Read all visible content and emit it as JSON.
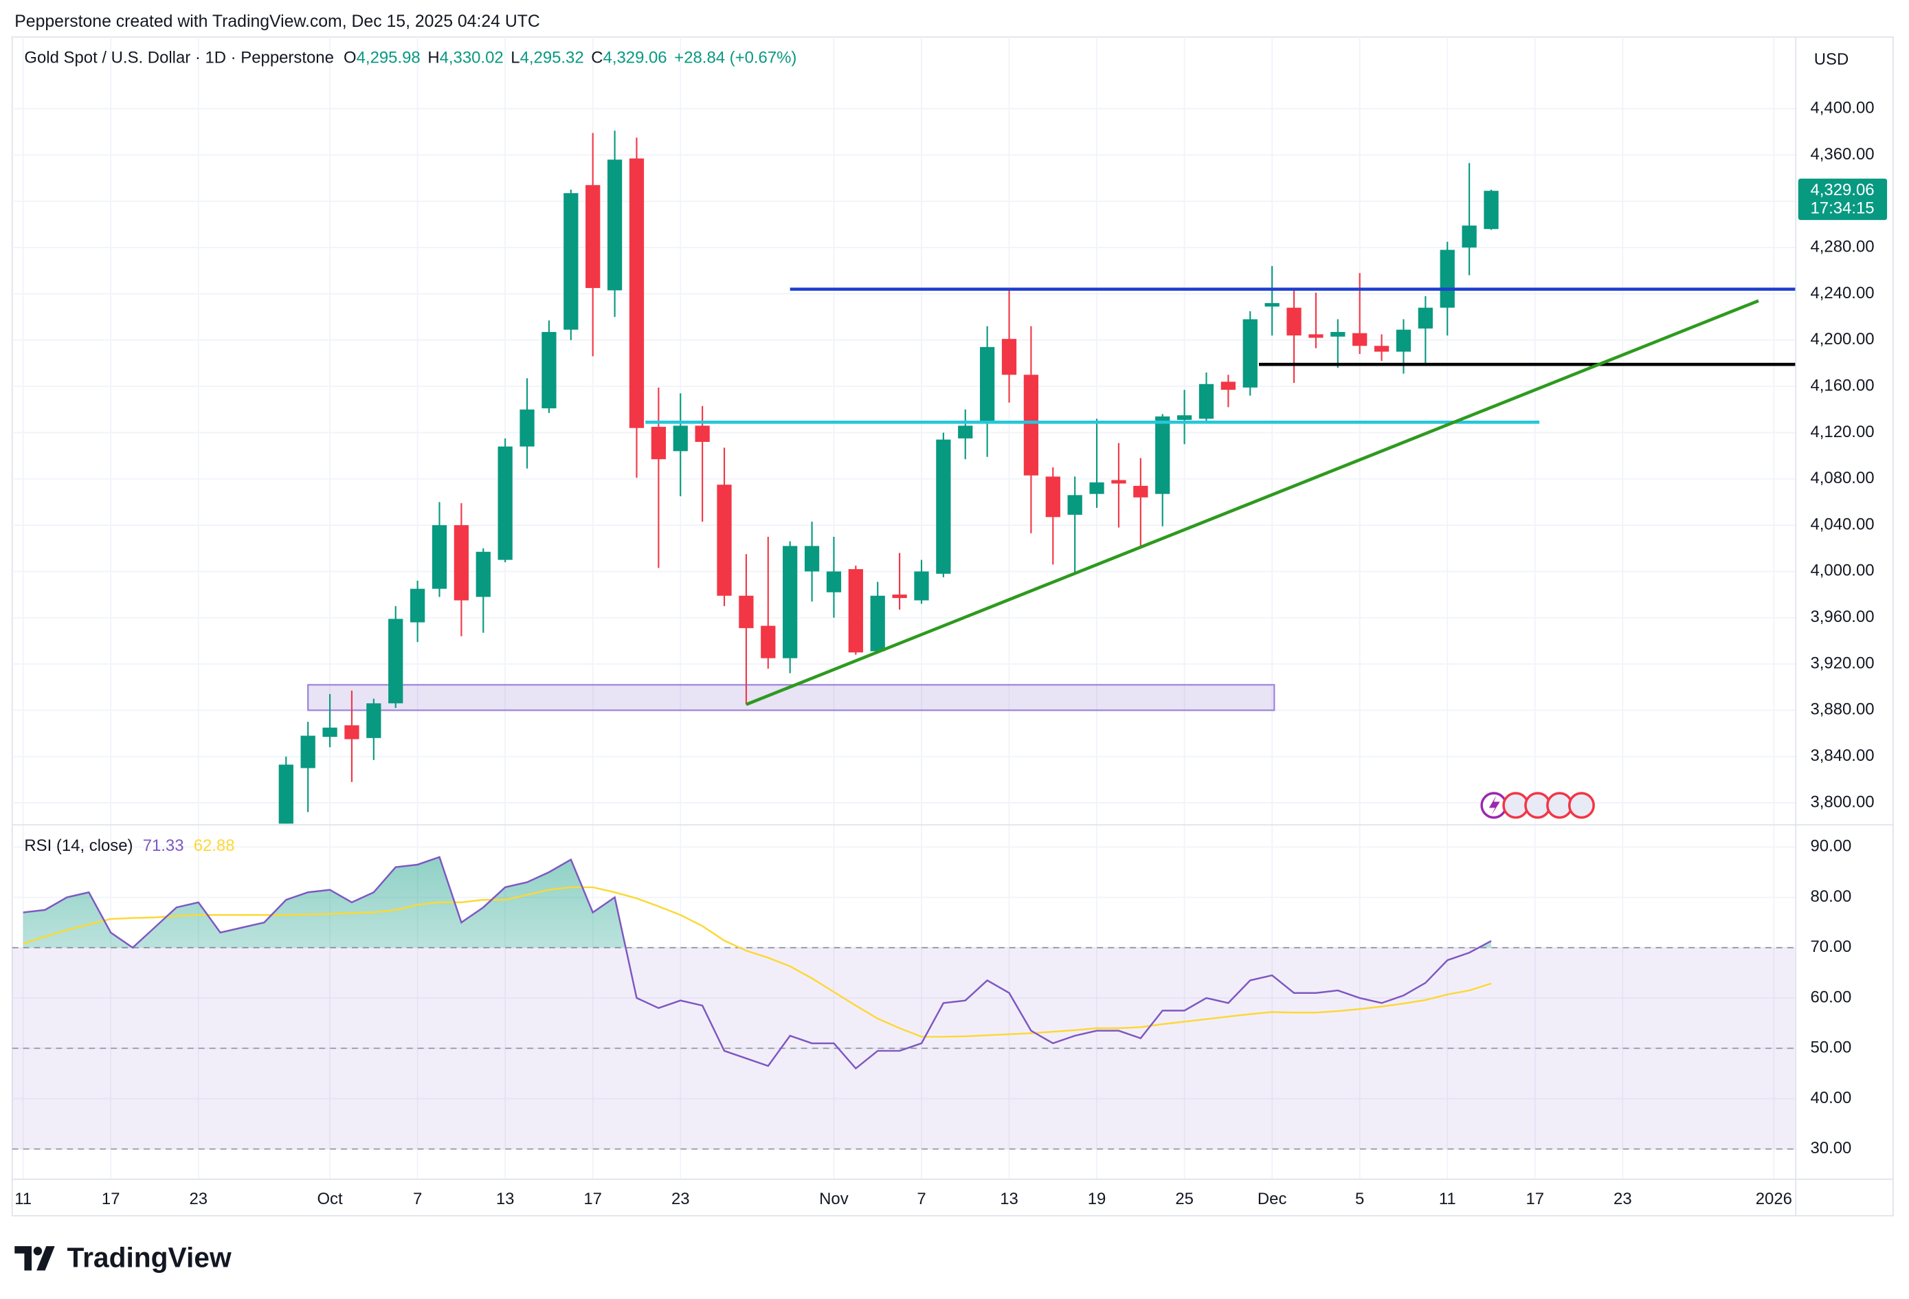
{
  "credit": "Pepperstone created with TradingView.com, Dec 15, 2025 04:24 UTC",
  "brand": "TradingView",
  "currency": "USD",
  "chart_data": [
    {
      "type": "candlestick",
      "title": "Gold Spot / U.S. Dollar · 1D · Pepperstone",
      "header_values": [
        {
          "key": "O",
          "value": 4295.98,
          "label": "4,295.98"
        },
        {
          "key": "H",
          "value": 4330.02,
          "label": "4,330.02"
        },
        {
          "key": "L",
          "value": 4295.32,
          "label": "4,295.32"
        },
        {
          "key": "C",
          "value": 4329.06,
          "label": "4,329.06"
        }
      ],
      "change": "+28.84 (+0.67%)",
      "up_color": "#089981",
      "down_color": "#f23645",
      "x": [
        0,
        1,
        2,
        3,
        4,
        5,
        6,
        7,
        8,
        9,
        10,
        11,
        12,
        13,
        14,
        15,
        16,
        17,
        18,
        19,
        20,
        21,
        22,
        23,
        24,
        25,
        26,
        27,
        28,
        29,
        30,
        31,
        32,
        33,
        34,
        35,
        36,
        37,
        38,
        39,
        40,
        41,
        42,
        43,
        44,
        45,
        46,
        47,
        48,
        49,
        50,
        51,
        52,
        53,
        54,
        55
      ],
      "open": [
        3760,
        3830,
        3857,
        3867,
        3856,
        3886,
        3956,
        3985,
        4040,
        3978,
        4010,
        4108,
        4141,
        4209,
        4334,
        4243,
        4357,
        4125,
        4104,
        4126,
        4075,
        3979,
        3953,
        3925,
        4000,
        3982,
        4002,
        3931,
        3980,
        3975,
        3998,
        4115,
        4128,
        4201,
        4170,
        4082,
        4049,
        4067,
        4079,
        4074,
        4067,
        4131,
        4132,
        4164,
        4159,
        4229,
        4228,
        4205,
        4203,
        4206,
        4195,
        4190,
        4210,
        4228,
        4280,
        4295.98
      ],
      "high": [
        3840,
        3870,
        3894,
        3897,
        3890,
        3970,
        3992,
        4060,
        4059,
        4020,
        4115,
        4167,
        4217,
        4330,
        4379,
        4381,
        4375,
        4159,
        4154,
        4143,
        4107,
        4015,
        4030,
        4026,
        4043,
        4030,
        4005,
        3991,
        4016,
        4010,
        4120,
        4140,
        4212,
        4245,
        4212,
        4090,
        4082,
        4132,
        4111,
        4098,
        4136,
        4157,
        4172,
        4170,
        4225,
        4264,
        4245,
        4241,
        4218,
        4258,
        4205,
        4218,
        4238,
        4285,
        4353,
        4330.02
      ],
      "low": [
        3745,
        3792,
        3848,
        3818,
        3837,
        3882,
        3939,
        3978,
        3944,
        3947,
        4008,
        4089,
        4137,
        4200,
        4186,
        4220,
        4081,
        4003,
        4065,
        4043,
        3970,
        3885,
        3916,
        3912,
        3974,
        3960,
        3928,
        3930,
        3967,
        3972,
        3995,
        4097,
        4099,
        4146,
        4033,
        4006,
        3999,
        4055,
        4038,
        4020,
        4039,
        4110,
        4128,
        4142,
        4152,
        4204,
        4163,
        4193,
        4176,
        4188,
        4182,
        4171,
        4180,
        4204,
        4256,
        4295.32
      ],
      "close": [
        3833,
        3858,
        3865,
        3855,
        3886,
        3959,
        3985,
        4040,
        3975,
        4017,
        4108,
        4140,
        4207,
        4327,
        4245,
        4356,
        4124,
        4097,
        4126,
        4112,
        3979,
        3951,
        3925,
        4022,
        4022,
        4000,
        3930,
        3979,
        3977,
        4000,
        4114,
        4126,
        4194,
        4170,
        4083,
        4047,
        4066,
        4077,
        4076,
        4064,
        4134,
        4135,
        4162,
        4157,
        4218,
        4232,
        4204,
        4202,
        4207,
        4195,
        4190,
        4209,
        4228,
        4278,
        4299,
        4329.06
      ],
      "last_price": {
        "value": 4329.06,
        "label": "4,329.06",
        "countdown": "17:34:15"
      },
      "xlim": [
        -12.5,
        68.9
      ],
      "ylim": [
        3782,
        4462
      ],
      "yticks": [
        {
          "value": 3800,
          "label": "3,800.00"
        },
        {
          "value": 3840,
          "label": "3,840.00"
        },
        {
          "value": 3880,
          "label": "3,880.00"
        },
        {
          "value": 3920,
          "label": "3,920.00"
        },
        {
          "value": 3960,
          "label": "3,960.00"
        },
        {
          "value": 4000,
          "label": "4,000.00"
        },
        {
          "value": 4040,
          "label": "4,040.00"
        },
        {
          "value": 4080,
          "label": "4,080.00"
        },
        {
          "value": 4120,
          "label": "4,120.00"
        },
        {
          "value": 4160,
          "label": "4,160.00"
        },
        {
          "value": 4200,
          "label": "4,200.00"
        },
        {
          "value": 4240,
          "label": "4,240.00"
        },
        {
          "value": 4280,
          "label": "4,280.00"
        },
        {
          "value": 4320,
          "label": "4,320.00"
        },
        {
          "value": 4360,
          "label": "4,360.00"
        },
        {
          "value": 4400,
          "label": "4,400.00"
        }
      ],
      "grid": true,
      "drawings": [
        {
          "kind": "line",
          "color": "#1e3fd0",
          "x": [
            23,
            68.9
          ],
          "y": [
            4244,
            4244
          ]
        },
        {
          "kind": "line",
          "color": "#000000",
          "x": [
            44.4,
            68.9
          ],
          "y": [
            4179,
            4179
          ]
        },
        {
          "kind": "line",
          "color": "#26c6da",
          "x": [
            16.4,
            57.2
          ],
          "y": [
            4129,
            4129
          ]
        },
        {
          "kind": "line",
          "color": "#2e9a1f",
          "x": [
            21,
            67.2
          ],
          "y": [
            3885,
            4234
          ]
        },
        {
          "kind": "rect",
          "color": "#9c7fd8",
          "x": [
            1,
            45.1
          ],
          "y": [
            3880,
            3902
          ]
        }
      ]
    },
    {
      "type": "line",
      "title": "RSI (14, close)",
      "x": [
        -12,
        -11,
        -10,
        -9,
        -8,
        -7,
        -6,
        -5,
        -4,
        -3,
        -2,
        -1,
        0,
        1,
        2,
        3,
        4,
        5,
        6,
        7,
        8,
        9,
        10,
        11,
        12,
        13,
        14,
        15,
        16,
        17,
        18,
        19,
        20,
        21,
        22,
        23,
        24,
        25,
        26,
        27,
        28,
        29,
        30,
        31,
        32,
        33,
        34,
        35,
        36,
        37,
        38,
        39,
        40,
        41,
        42,
        43,
        44,
        45,
        46,
        47,
        48,
        49,
        50,
        51,
        52,
        53,
        54,
        55
      ],
      "series": [
        {
          "color": "#7e57c2",
          "values": [
            77,
            77.5,
            80,
            81,
            73,
            70,
            74,
            78,
            79,
            73,
            74,
            75,
            79.5,
            81,
            81.5,
            79,
            81,
            86,
            86.5,
            88,
            75,
            78,
            82,
            83,
            85,
            87.5,
            77,
            80,
            60,
            58,
            59.5,
            58.5,
            49.5,
            48,
            46.5,
            52.5,
            51,
            51,
            46,
            49.5,
            49.5,
            51,
            59,
            59.5,
            63.5,
            61,
            53.5,
            51,
            52.5,
            53.5,
            53.5,
            52,
            57.5,
            57.5,
            60,
            59,
            63.5,
            64.5,
            61,
            61,
            61.5,
            60,
            59,
            60.5,
            63,
            67.5,
            69,
            71.33
          ]
        },
        {
          "color": "#fdd835",
          "values": [
            70.8,
            72.2,
            73.5,
            74.6,
            75.7,
            75.9,
            76,
            76.3,
            76.5,
            76.5,
            76.5,
            76.5,
            76.5,
            76.6,
            76.7,
            76.9,
            77,
            77.5,
            78.5,
            79,
            79,
            79.5,
            79.5,
            80.5,
            81.5,
            82,
            82,
            81,
            79.8,
            78.2,
            76.5,
            74.3,
            71.4,
            69.4,
            68,
            66.3,
            63.9,
            61.2,
            58.5,
            55.9,
            54,
            52.3,
            52.3,
            52.4,
            52.6,
            52.8,
            53,
            53.3,
            53.6,
            54,
            54,
            54.2,
            54.8,
            55.3,
            55.8,
            56.3,
            56.8,
            57.2,
            57.1,
            57.1,
            57.4,
            57.8,
            58.3,
            58.9,
            59.6,
            60.7,
            61.5,
            62.88
          ]
        }
      ],
      "band": [
        30,
        70
      ],
      "levels": [
        70,
        50,
        30
      ],
      "xlim": [
        -12.5,
        68.9
      ],
      "ylim": [
        24,
        94.4
      ],
      "yticks": [
        {
          "value": 30,
          "label": "30.00"
        },
        {
          "value": 40,
          "label": "40.00"
        },
        {
          "value": 50,
          "label": "50.00"
        },
        {
          "value": 60,
          "label": "60.00"
        },
        {
          "value": 70,
          "label": "70.00"
        },
        {
          "value": 80,
          "label": "80.00"
        },
        {
          "value": 90,
          "label": "90.00"
        }
      ],
      "xticks": [
        {
          "value": -12,
          "label": "11"
        },
        {
          "value": -8,
          "label": "17"
        },
        {
          "value": -4,
          "label": "23"
        },
        {
          "value": 2,
          "label": "Oct"
        },
        {
          "value": 6,
          "label": "7"
        },
        {
          "value": 10,
          "label": "13"
        },
        {
          "value": 14,
          "label": "17"
        },
        {
          "value": 18,
          "label": "23"
        },
        {
          "value": 25,
          "label": "Nov"
        },
        {
          "value": 29,
          "label": "7"
        },
        {
          "value": 33,
          "label": "13"
        },
        {
          "value": 37,
          "label": "19"
        },
        {
          "value": 41,
          "label": "25"
        },
        {
          "value": 45,
          "label": "Dec"
        },
        {
          "value": 49,
          "label": "5"
        },
        {
          "value": 53,
          "label": "11"
        },
        {
          "value": 57,
          "label": "17"
        },
        {
          "value": 61,
          "label": "23"
        },
        {
          "value": 67.9,
          "label": "2026"
        }
      ],
      "grid": true
    }
  ]
}
